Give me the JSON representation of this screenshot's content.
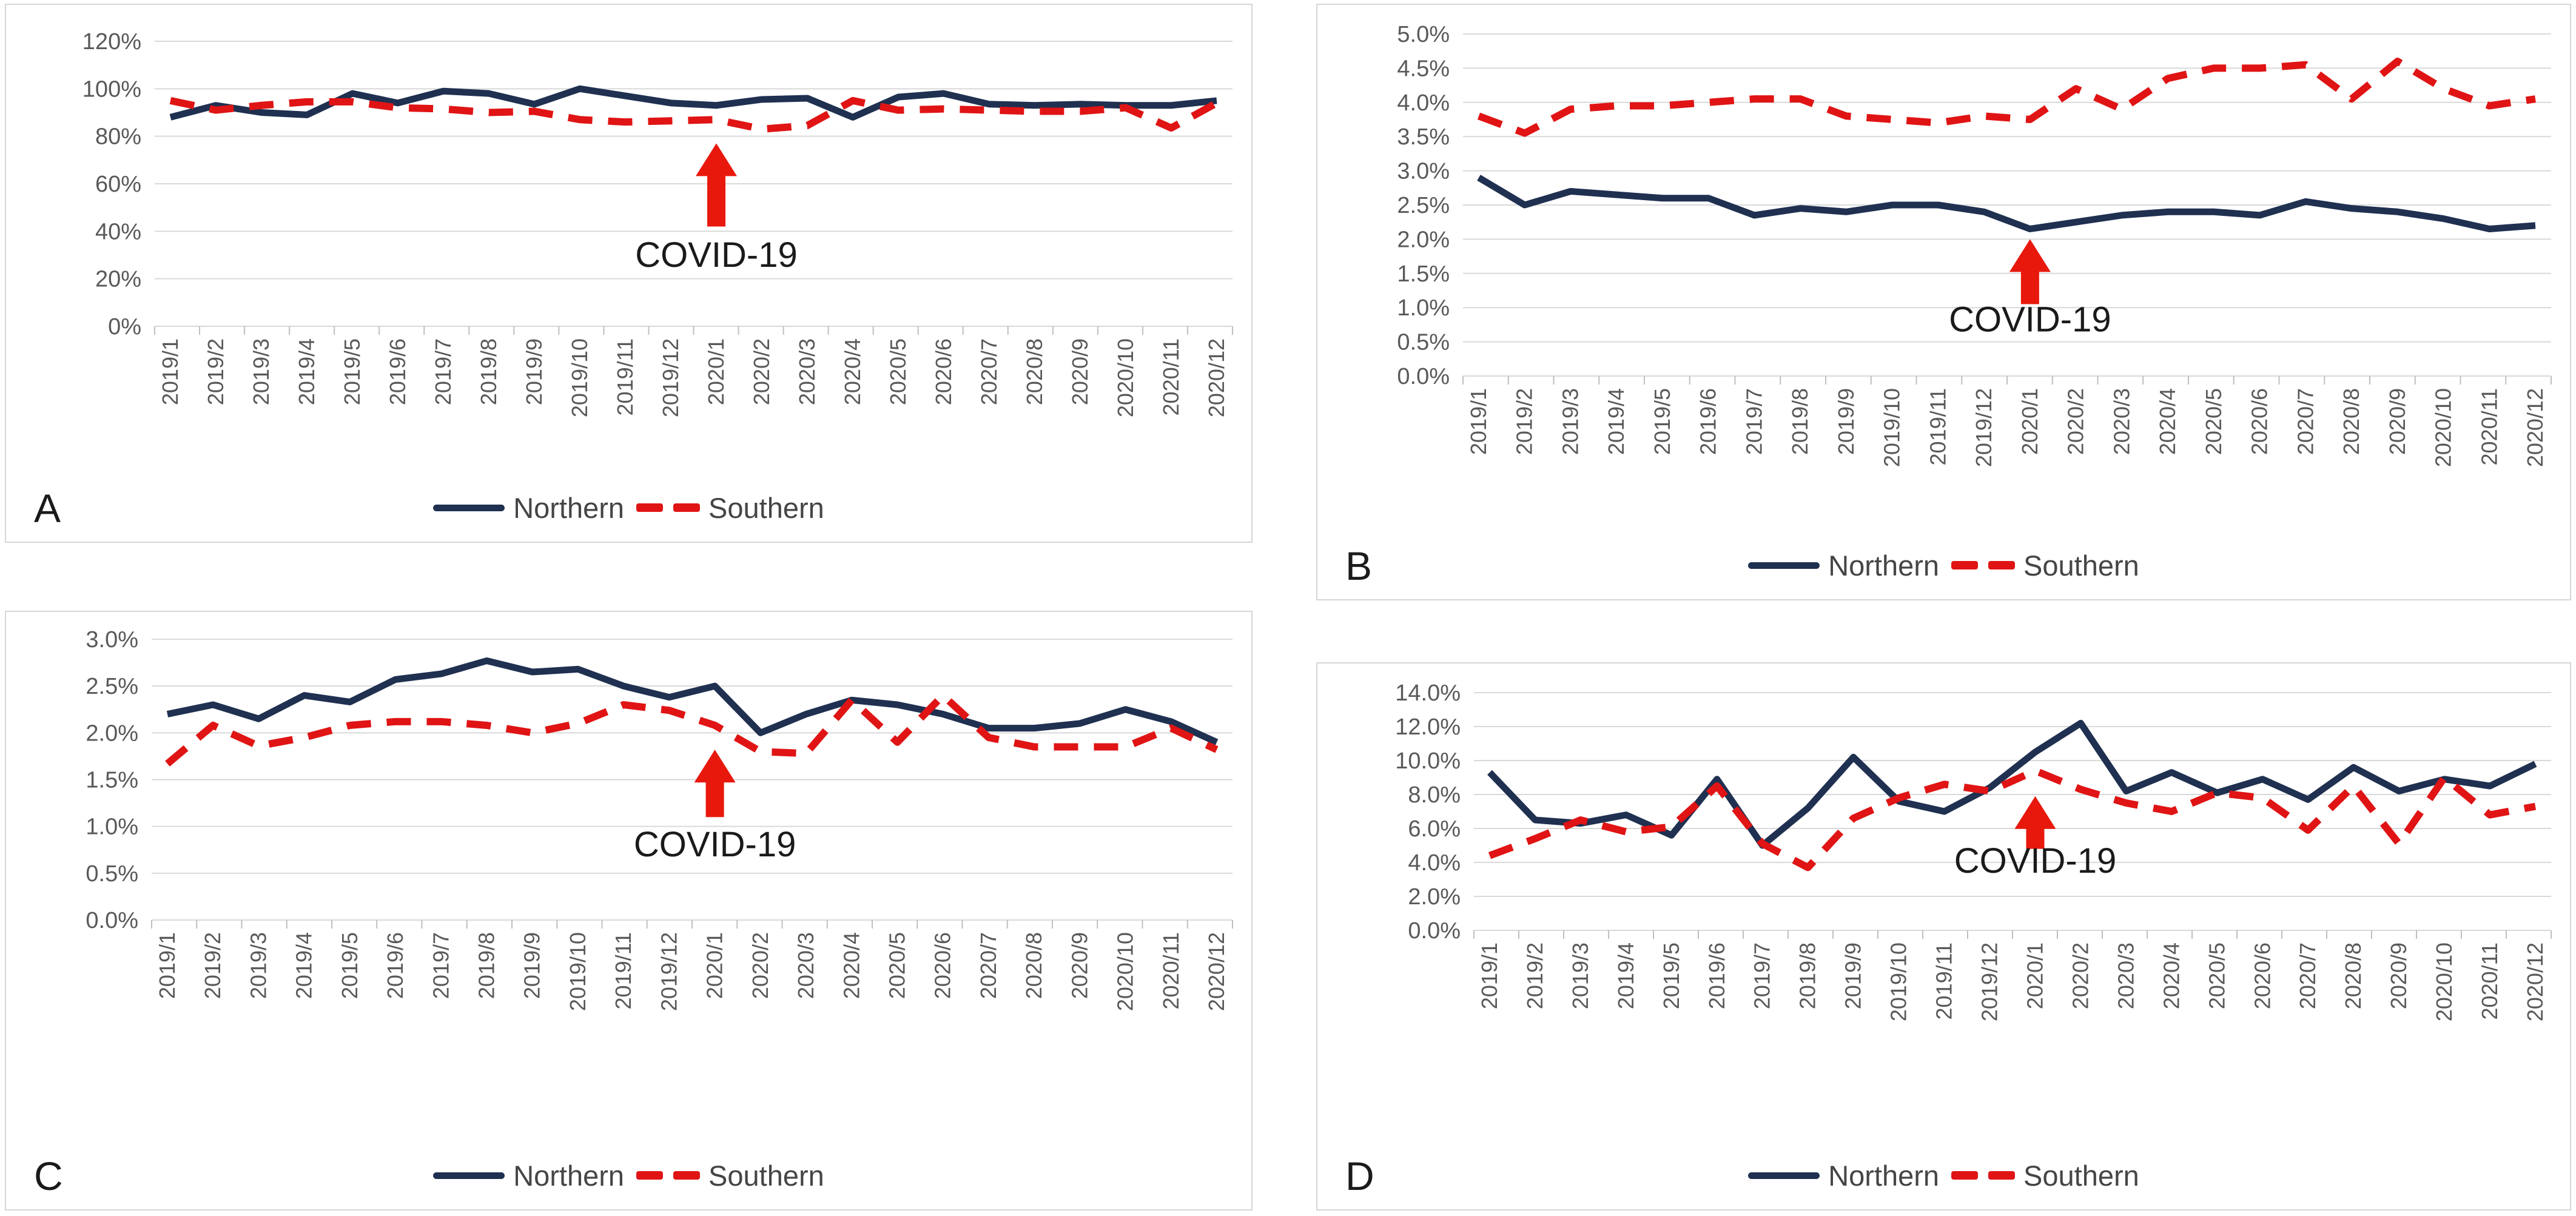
{
  "legend": {
    "northern": "Northern",
    "southern": "Southern"
  },
  "annotation_text": "COVID-19",
  "colors": {
    "northern_line": "#1f3050",
    "southern_line": "#e01414",
    "arrow": "#e8180c",
    "gridline": "#d9d9d9",
    "tick_text": "#595959",
    "annotation_text_color": "#1a1a1a"
  },
  "chart_data": [
    {
      "type": "line",
      "panel_label": "A",
      "ylim": [
        0,
        120
      ],
      "ytick_step": 20,
      "ytick_decimals": 0,
      "grid": true,
      "legend_position": "bottom",
      "categories": [
        "2019/1",
        "2019/2",
        "2019/3",
        "2019/4",
        "2019/5",
        "2019/6",
        "2019/7",
        "2019/8",
        "2019/9",
        "2019/10",
        "2019/11",
        "2019/12",
        "2020/1",
        "2020/2",
        "2020/3",
        "2020/4",
        "2020/5",
        "2020/6",
        "2020/7",
        "2020/8",
        "2020/9",
        "2020/10",
        "2020/11",
        "2020/12"
      ],
      "series": [
        {
          "name": "Northern",
          "style": "solid",
          "color": "#1f3050",
          "values": [
            88,
            93,
            90,
            89,
            98,
            94,
            99,
            98,
            93.5,
            100,
            97,
            94,
            93,
            95.5,
            96,
            88,
            96.5,
            98,
            93.5,
            93,
            93.5,
            93,
            93,
            95
          ]
        },
        {
          "name": "Southern",
          "style": "dashed",
          "color": "#e01414",
          "values": [
            95,
            91,
            93,
            94.5,
            94.5,
            92,
            91.5,
            90,
            90.5,
            87,
            86,
            86.5,
            87,
            83,
            84.5,
            95,
            91,
            91.5,
            91,
            90.5,
            90.5,
            92,
            83.5,
            94
          ]
        }
      ],
      "annotation": {
        "text": "COVID-19",
        "x_category": "2020/1",
        "arrow_tip_value": 77,
        "arrow_base_value": 42,
        "label_value": 25
      }
    },
    {
      "type": "line",
      "panel_label": "B",
      "ylim": [
        0,
        5
      ],
      "ytick_step": 0.5,
      "ytick_decimals": 1,
      "grid": true,
      "legend_position": "bottom",
      "categories": [
        "2019/1",
        "2019/2",
        "2019/3",
        "2019/4",
        "2019/5",
        "2019/6",
        "2019/7",
        "2019/8",
        "2019/9",
        "2019/10",
        "2019/11",
        "2019/12",
        "2020/1",
        "2020/2",
        "2020/3",
        "2020/4",
        "2020/5",
        "2020/6",
        "2020/7",
        "2020/8",
        "2020/9",
        "2020/10",
        "2020/11",
        "2020/12"
      ],
      "series": [
        {
          "name": "Northern",
          "style": "solid",
          "color": "#1f3050",
          "values": [
            2.9,
            2.5,
            2.7,
            2.65,
            2.6,
            2.6,
            2.35,
            2.45,
            2.4,
            2.5,
            2.5,
            2.4,
            2.15,
            2.25,
            2.35,
            2.4,
            2.4,
            2.35,
            2.55,
            2.45,
            2.4,
            2.3,
            2.15,
            2.2
          ]
        },
        {
          "name": "Southern",
          "style": "dashed",
          "color": "#e01414",
          "values": [
            3.8,
            3.55,
            3.9,
            3.95,
            3.95,
            4.0,
            4.05,
            4.05,
            3.8,
            3.75,
            3.7,
            3.8,
            3.75,
            4.2,
            3.9,
            4.35,
            4.5,
            4.5,
            4.55,
            4.05,
            4.6,
            4.2,
            3.95,
            4.05
          ]
        }
      ],
      "annotation": {
        "text": "COVID-19",
        "x_category": "2020/1",
        "arrow_tip_value": 2.0,
        "arrow_base_value": 1.05,
        "label_value": 0.65
      }
    },
    {
      "type": "line",
      "panel_label": "C",
      "ylim": [
        0,
        3
      ],
      "ytick_step": 0.5,
      "ytick_decimals": 1,
      "grid": true,
      "legend_position": "bottom",
      "categories": [
        "2019/1",
        "2019/2",
        "2019/3",
        "2019/4",
        "2019/5",
        "2019/6",
        "2019/7",
        "2019/8",
        "2019/9",
        "2019/10",
        "2019/11",
        "2019/12",
        "2020/1",
        "2020/2",
        "2020/3",
        "2020/4",
        "2020/5",
        "2020/6",
        "2020/7",
        "2020/8",
        "2020/9",
        "2020/10",
        "2020/11",
        "2020/12"
      ],
      "series": [
        {
          "name": "Northern",
          "style": "solid",
          "color": "#1f3050",
          "values": [
            2.2,
            2.3,
            2.15,
            2.4,
            2.33,
            2.57,
            2.63,
            2.77,
            2.65,
            2.68,
            2.5,
            2.38,
            2.5,
            2.0,
            2.2,
            2.35,
            2.3,
            2.2,
            2.05,
            2.05,
            2.1,
            2.25,
            2.12,
            1.9
          ]
        },
        {
          "name": "Southern",
          "style": "dashed",
          "color": "#e01414",
          "values": [
            1.67,
            2.08,
            1.86,
            1.95,
            2.08,
            2.12,
            2.12,
            2.08,
            2.0,
            2.1,
            2.3,
            2.24,
            2.08,
            1.8,
            1.78,
            2.35,
            1.9,
            2.4,
            1.95,
            1.85,
            1.85,
            1.85,
            2.05,
            1.82
          ]
        }
      ],
      "annotation": {
        "text": "COVID-19",
        "x_category": "2020/1",
        "arrow_tip_value": 1.82,
        "arrow_base_value": 1.1,
        "label_value": 0.68
      }
    },
    {
      "type": "line",
      "panel_label": "D",
      "ylim": [
        0,
        14
      ],
      "ytick_step": 2,
      "ytick_decimals": 1,
      "grid": true,
      "legend_position": "bottom",
      "categories": [
        "2019/1",
        "2019/2",
        "2019/3",
        "2019/4",
        "2019/5",
        "2019/6",
        "2019/7",
        "2019/8",
        "2019/9",
        "2019/10",
        "2019/11",
        "2019/12",
        "2020/1",
        "2020/2",
        "2020/3",
        "2020/4",
        "2020/5",
        "2020/6",
        "2020/7",
        "2020/8",
        "2020/9",
        "2020/10",
        "2020/11",
        "2020/12"
      ],
      "series": [
        {
          "name": "Northern",
          "style": "solid",
          "color": "#1f3050",
          "values": [
            9.3,
            6.5,
            6.3,
            6.8,
            5.6,
            8.9,
            5.0,
            7.2,
            10.2,
            7.6,
            7.0,
            8.4,
            10.5,
            12.2,
            8.2,
            9.3,
            8.1,
            8.9,
            7.7,
            9.6,
            8.2,
            8.9,
            8.5,
            9.8
          ]
        },
        {
          "name": "Southern",
          "style": "dashed",
          "color": "#e01414",
          "values": [
            4.4,
            5.4,
            6.5,
            5.8,
            6.1,
            8.5,
            5.1,
            3.7,
            6.6,
            7.8,
            8.6,
            8.2,
            9.4,
            8.3,
            7.5,
            7.0,
            8.1,
            7.8,
            5.9,
            8.5,
            5.1,
            9.0,
            6.8,
            7.3
          ]
        }
      ],
      "annotation": {
        "text": "COVID-19",
        "x_category": "2020/1",
        "arrow_tip_value": 7.9,
        "arrow_base_value": 4.8,
        "label_value": 3.4
      }
    }
  ]
}
